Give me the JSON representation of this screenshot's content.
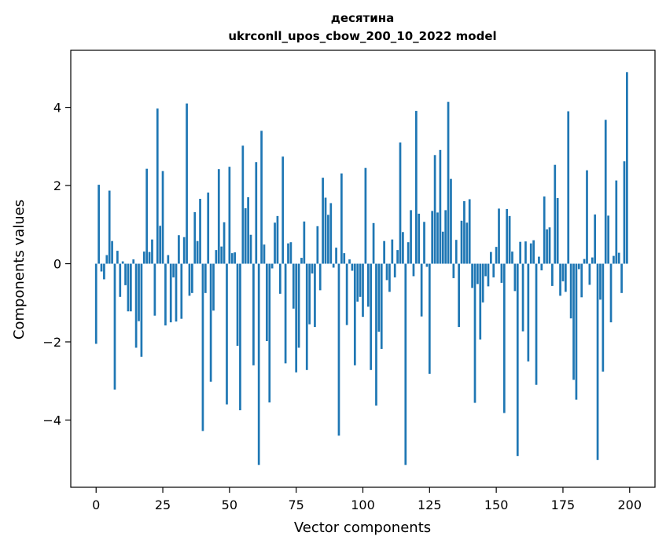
{
  "chart_data": {
    "type": "bar",
    "title_line1": "десятина",
    "title_line2": "ukrconll_upos_cbow_200_10_2022 model",
    "xlabel": "Vector components",
    "ylabel": "Components values",
    "xlim": [
      -9.5,
      209.5
    ],
    "ylim": [
      -5.72,
      5.46
    ],
    "xticks": [
      0,
      25,
      50,
      75,
      100,
      125,
      150,
      175,
      200
    ],
    "yticks": [
      -4,
      -2,
      0,
      2,
      4
    ],
    "ytick_labels": [
      "−4",
      "−2",
      "0",
      "2",
      "4"
    ],
    "bar_color": "#1f77b4",
    "grid": false,
    "values": [
      -2.05,
      2.02,
      -0.2,
      -0.4,
      0.22,
      1.87,
      0.58,
      -3.22,
      0.33,
      -0.85,
      0.06,
      -0.55,
      -1.22,
      -1.22,
      0.11,
      -2.15,
      -1.47,
      -2.38,
      0.31,
      2.43,
      0.3,
      0.62,
      -1.33,
      3.97,
      0.97,
      2.37,
      -1.58,
      0.22,
      -1.5,
      -0.35,
      -1.48,
      0.73,
      -1.41,
      0.68,
      4.1,
      -0.82,
      -0.75,
      1.32,
      0.58,
      1.66,
      -4.28,
      -0.75,
      1.82,
      -3.02,
      -1.2,
      0.35,
      2.42,
      0.44,
      1.06,
      -3.6,
      2.48,
      0.27,
      0.29,
      -2.1,
      -3.75,
      3.02,
      1.42,
      1.7,
      0.74,
      -2.6,
      2.6,
      -5.15,
      3.4,
      0.49,
      -1.98,
      -3.55,
      -0.12,
      1.05,
      1.22,
      -0.77,
      2.74,
      -2.55,
      0.52,
      0.55,
      -1.15,
      -2.78,
      -2.15,
      0.15,
      1.08,
      -2.72,
      -1.55,
      -0.25,
      -1.62,
      0.96,
      -0.68,
      2.2,
      1.69,
      1.25,
      1.55,
      -0.1,
      0.41,
      -4.4,
      2.31,
      0.27,
      -1.57,
      0.11,
      -0.18,
      -2.6,
      -0.97,
      -0.85,
      -1.36,
      2.45,
      -1.1,
      -2.72,
      1.04,
      -3.63,
      -1.74,
      -2.18,
      0.58,
      -0.42,
      -0.72,
      0.62,
      -0.35,
      0.35,
      3.1,
      0.81,
      -5.15,
      0.55,
      1.37,
      -0.32,
      3.91,
      1.28,
      -1.35,
      1.07,
      -0.08,
      -2.82,
      1.35,
      2.78,
      1.31,
      2.91,
      0.82,
      1.37,
      4.14,
      2.17,
      -0.37,
      0.61,
      -1.62,
      1.1,
      1.6,
      1.05,
      1.65,
      -0.62,
      -3.56,
      -0.52,
      -1.94,
      -0.99,
      -0.32,
      -0.58,
      0.3,
      -0.35,
      0.43,
      1.41,
      -0.49,
      -3.82,
      1.4,
      1.22,
      0.31,
      -0.7,
      -4.92,
      0.56,
      -1.73,
      0.57,
      -2.5,
      0.52,
      0.6,
      -3.1,
      0.18,
      -0.17,
      1.72,
      0.88,
      0.93,
      -0.57,
      2.53,
      1.68,
      -0.82,
      -0.45,
      -0.72,
      3.9,
      -1.4,
      -2.97,
      -3.48,
      -0.14,
      -0.86,
      0.12,
      2.39,
      -0.54,
      0.16,
      1.26,
      -5.02,
      -0.92,
      -2.76,
      3.68,
      1.23,
      -1.5,
      0.2,
      2.13,
      0.28,
      -0.75,
      2.62,
      4.9
    ]
  }
}
